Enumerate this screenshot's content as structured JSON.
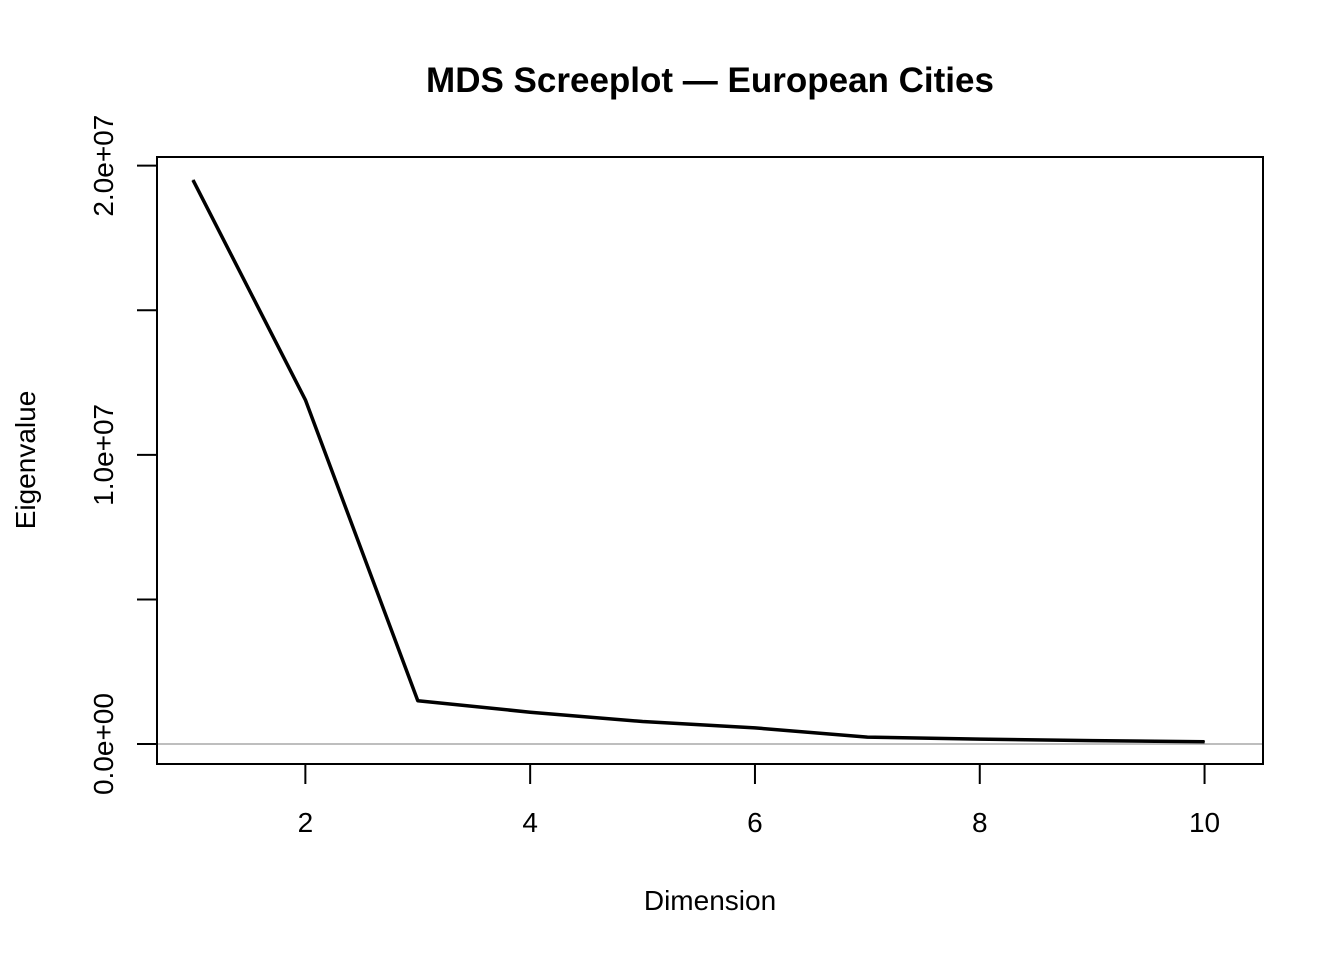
{
  "chart_data": {
    "type": "line",
    "title": "MDS Screeplot — European Cities",
    "xlabel": "Dimension",
    "ylabel": "Eigenvalue",
    "x": [
      1,
      2,
      3,
      4,
      5,
      6,
      7,
      8,
      9,
      10
    ],
    "series": [
      {
        "values": [
          19500000,
          11900000,
          1500000,
          1100000,
          780000,
          560000,
          240000,
          170000,
          120000,
          80000
        ],
        "color": "#000000"
      }
    ],
    "xlim": [
      0.68,
      10.52
    ],
    "ylim": [
      -690000,
      20300000
    ],
    "xticks": [
      2,
      4,
      6,
      8,
      10
    ],
    "xtick_labels": [
      "2",
      "4",
      "6",
      "8",
      "10"
    ],
    "yticks": [
      0,
      5000000,
      10000000,
      15000000,
      20000000
    ],
    "ytick_labels": [
      "0.0e+00",
      "",
      "1.0e+07",
      "",
      "2.0e+07"
    ],
    "reference_line": {
      "y": 0,
      "color": "#bebebe"
    },
    "grid": false,
    "legend": "none"
  }
}
